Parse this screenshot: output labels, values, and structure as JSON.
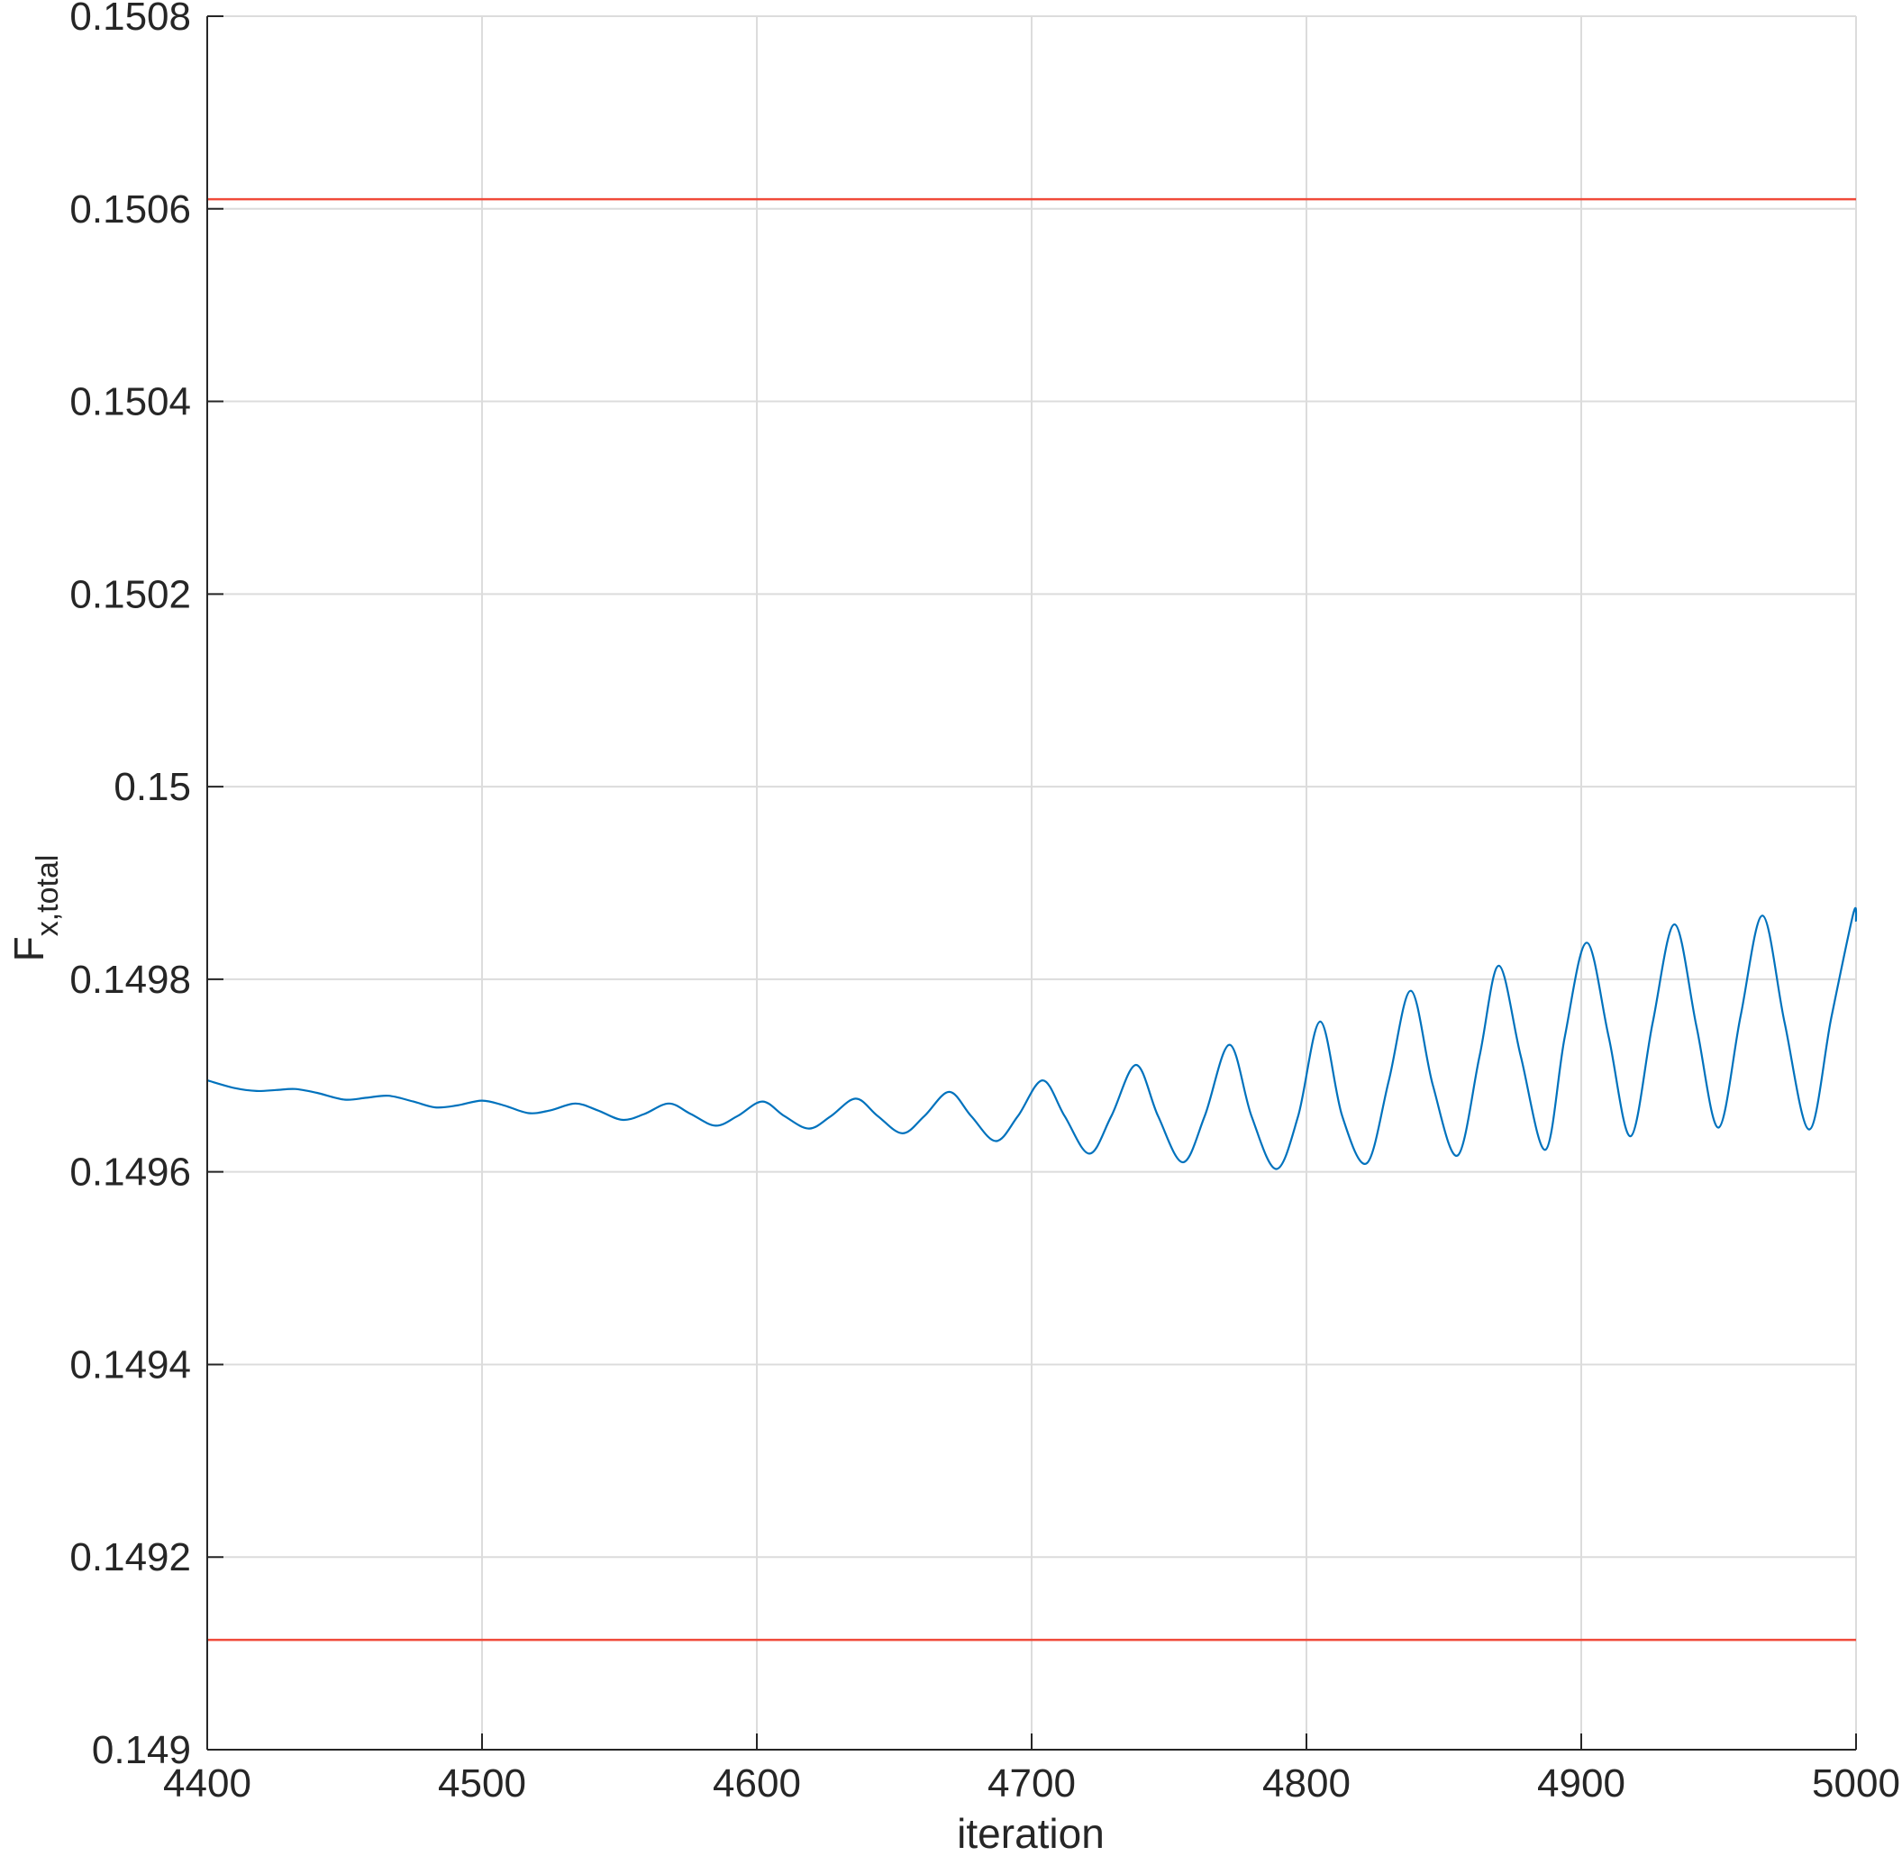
{
  "chart_data": {
    "type": "line",
    "xlabel": "iteration",
    "ylabel_main": "F",
    "ylabel_sub": "x,total",
    "xlim": [
      4400,
      5000
    ],
    "ylim": [
      0.149,
      0.1508
    ],
    "xticks": [
      4400,
      4500,
      4600,
      4700,
      4800,
      4900,
      5000
    ],
    "xtick_labels": [
      "4400",
      "4500",
      "4600",
      "4700",
      "4800",
      "4900",
      "5000"
    ],
    "yticks": [
      0.149,
      0.1492,
      0.1494,
      0.1496,
      0.1498,
      0.15,
      0.1502,
      0.1504,
      0.1506,
      0.1508
    ],
    "ytick_labels": [
      "0.149",
      "0.1492",
      "0.1494",
      "0.1496",
      "0.1498",
      "0.15",
      "0.1502",
      "0.1504",
      "0.1506",
      "0.1508"
    ],
    "grid": true,
    "colors": {
      "series": "#0072BD",
      "limits": "#F04A3A",
      "grid": "#DCDCDC",
      "axis": "#262626"
    },
    "reference_lines": [
      {
        "y": 0.15061
      },
      {
        "y": 0.149114
      }
    ],
    "series": [
      {
        "x": [
          4400,
          4410,
          4418,
          4425,
          4432,
          4440,
          4450,
          4458,
          4466,
          4475,
          4483,
          4491,
          4500,
          4508,
          4517,
          4525,
          4534,
          4542,
          4551,
          4559,
          4568,
          4576,
          4585,
          4593,
          4602,
          4610,
          4619,
          4627,
          4636,
          4644,
          4653,
          4661,
          4670,
          4678,
          4687,
          4695,
          4704,
          4712,
          4721,
          4729,
          4738,
          4746,
          4755,
          4763,
          4772,
          4780,
          4789,
          4797,
          4805,
          4813,
          4822,
          4830,
          4838,
          4846,
          4855,
          4863,
          4870,
          4878,
          4887,
          4894,
          4902,
          4910,
          4918,
          4926,
          4934,
          4942,
          4950,
          4958,
          4966,
          4974,
          4983,
          4991,
          4999,
          5000
        ],
        "y": [
          0.149695,
          0.149687,
          0.149684,
          0.149685,
          0.149686,
          0.149682,
          0.149675,
          0.149677,
          0.149679,
          0.149673,
          0.149667,
          0.149669,
          0.149674,
          0.149669,
          0.149661,
          0.149664,
          0.149671,
          0.149664,
          0.149654,
          0.14966,
          0.149671,
          0.14966,
          0.149648,
          0.149658,
          0.149673,
          0.149658,
          0.149645,
          0.149658,
          0.149676,
          0.149658,
          0.14964,
          0.149658,
          0.149683,
          0.149658,
          0.149632,
          0.149658,
          0.149695,
          0.149658,
          0.149619,
          0.149658,
          0.149711,
          0.149658,
          0.14961,
          0.149658,
          0.149732,
          0.149658,
          0.149603,
          0.149658,
          0.149756,
          0.149658,
          0.149609,
          0.149695,
          0.149788,
          0.14969,
          0.149617,
          0.14972,
          0.149814,
          0.14972,
          0.149623,
          0.14974,
          0.149838,
          0.14974,
          0.149637,
          0.149755,
          0.149857,
          0.14975,
          0.149646,
          0.149762,
          0.149866,
          0.149755,
          0.149644,
          0.14976,
          0.149868,
          0.14986
        ]
      }
    ]
  }
}
